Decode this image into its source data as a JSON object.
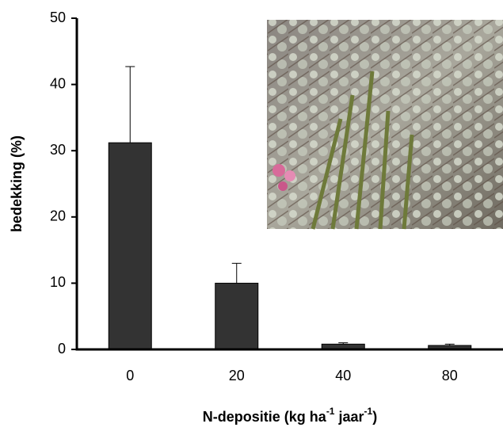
{
  "chart_data": {
    "type": "bar",
    "y_label": "bedekking (%)",
    "x_label_parts": [
      "N-depositie (kg ha",
      "-1",
      " jaar",
      "-1",
      ")"
    ],
    "categories": [
      "0",
      "20",
      "40",
      "80"
    ],
    "values": [
      31.2,
      10,
      0.8,
      0.6
    ],
    "errors": [
      11.5,
      3,
      0.2,
      0.2
    ],
    "color": "#333333",
    "ylim": [
      0,
      50
    ],
    "yticks": [
      0,
      10,
      20,
      30,
      40,
      50
    ],
    "grid": false
  }
}
